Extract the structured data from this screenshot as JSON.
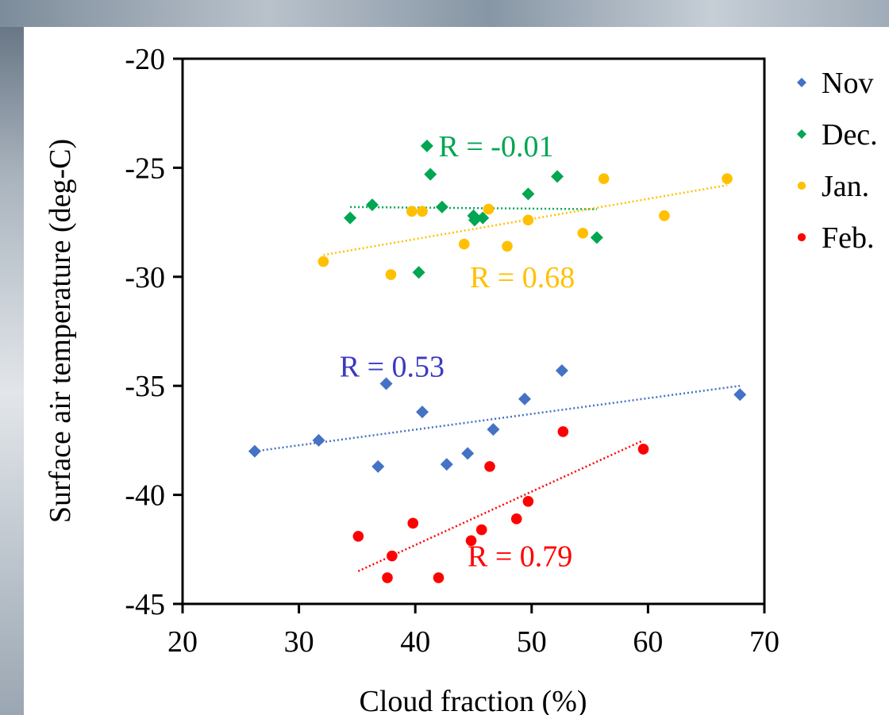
{
  "chart_data": {
    "type": "scatter",
    "xlabel": "Cloud fraction (%)",
    "ylabel": "Surface air temperature (deg-C)",
    "xlim": [
      20,
      70
    ],
    "ylim": [
      -45,
      -20
    ],
    "xticks": [
      20,
      30,
      40,
      50,
      60,
      70
    ],
    "yticks": [
      -20,
      -25,
      -30,
      -35,
      -40,
      -45
    ],
    "grid": false,
    "legend_position": "right",
    "series": [
      {
        "name": "Nov",
        "color": "#4472c4",
        "marker": "diamond",
        "points": [
          [
            26.2,
            -38.0
          ],
          [
            31.7,
            -37.5
          ],
          [
            36.8,
            -38.7
          ],
          [
            37.5,
            -34.9
          ],
          [
            40.6,
            -36.2
          ],
          [
            42.7,
            -38.6
          ],
          [
            44.5,
            -38.1
          ],
          [
            46.7,
            -37.0
          ],
          [
            49.4,
            -35.6
          ],
          [
            52.6,
            -34.3
          ],
          [
            67.9,
            -35.4
          ]
        ],
        "trendline": [
          [
            26.2,
            -38.0
          ],
          [
            67.9,
            -35.0
          ]
        ],
        "r_label": "R = 0.53",
        "r_color": "#3a3ac0"
      },
      {
        "name": "Dec.",
        "color": "#00a651",
        "marker": "diamond",
        "points": [
          [
            34.4,
            -27.3
          ],
          [
            36.3,
            -26.7
          ],
          [
            40.3,
            -29.8
          ],
          [
            41.0,
            -24.0
          ],
          [
            41.3,
            -25.3
          ],
          [
            42.3,
            -26.8
          ],
          [
            45.0,
            -27.2
          ],
          [
            45.1,
            -27.4
          ],
          [
            45.8,
            -27.3
          ],
          [
            49.7,
            -26.2
          ],
          [
            52.2,
            -25.4
          ],
          [
            55.6,
            -28.2
          ]
        ],
        "trendline": [
          [
            34.4,
            -26.8
          ],
          [
            55.6,
            -26.9
          ]
        ],
        "r_label": "R = -0.01",
        "r_color": "#00a651"
      },
      {
        "name": "Jan.",
        "color": "#ffc000",
        "marker": "circle",
        "points": [
          [
            32.1,
            -29.3
          ],
          [
            37.9,
            -29.9
          ],
          [
            39.7,
            -27.0
          ],
          [
            40.6,
            -27.0
          ],
          [
            44.2,
            -28.5
          ],
          [
            46.3,
            -26.9
          ],
          [
            47.9,
            -28.6
          ],
          [
            49.7,
            -27.4
          ],
          [
            54.4,
            -28.0
          ],
          [
            56.2,
            -25.5
          ],
          [
            61.4,
            -27.2
          ],
          [
            66.8,
            -25.5
          ]
        ],
        "trendline": [
          [
            32.1,
            -29.0
          ],
          [
            66.8,
            -25.8
          ]
        ],
        "r_label": "R = 0.68",
        "r_color": "#ffc000"
      },
      {
        "name": "Feb.",
        "color": "#ff0000",
        "marker": "circle",
        "points": [
          [
            35.1,
            -41.9
          ],
          [
            37.6,
            -43.8
          ],
          [
            38.0,
            -42.8
          ],
          [
            39.8,
            -41.3
          ],
          [
            42.0,
            -43.8
          ],
          [
            44.8,
            -42.1
          ],
          [
            45.7,
            -41.6
          ],
          [
            46.4,
            -38.7
          ],
          [
            48.7,
            -41.1
          ],
          [
            49.7,
            -40.3
          ],
          [
            52.7,
            -37.1
          ],
          [
            59.6,
            -37.9
          ]
        ],
        "trendline": [
          [
            35.1,
            -43.5
          ],
          [
            59.6,
            -37.5
          ]
        ],
        "r_label": "R = 0.79",
        "r_color": "#ff0000"
      }
    ]
  }
}
